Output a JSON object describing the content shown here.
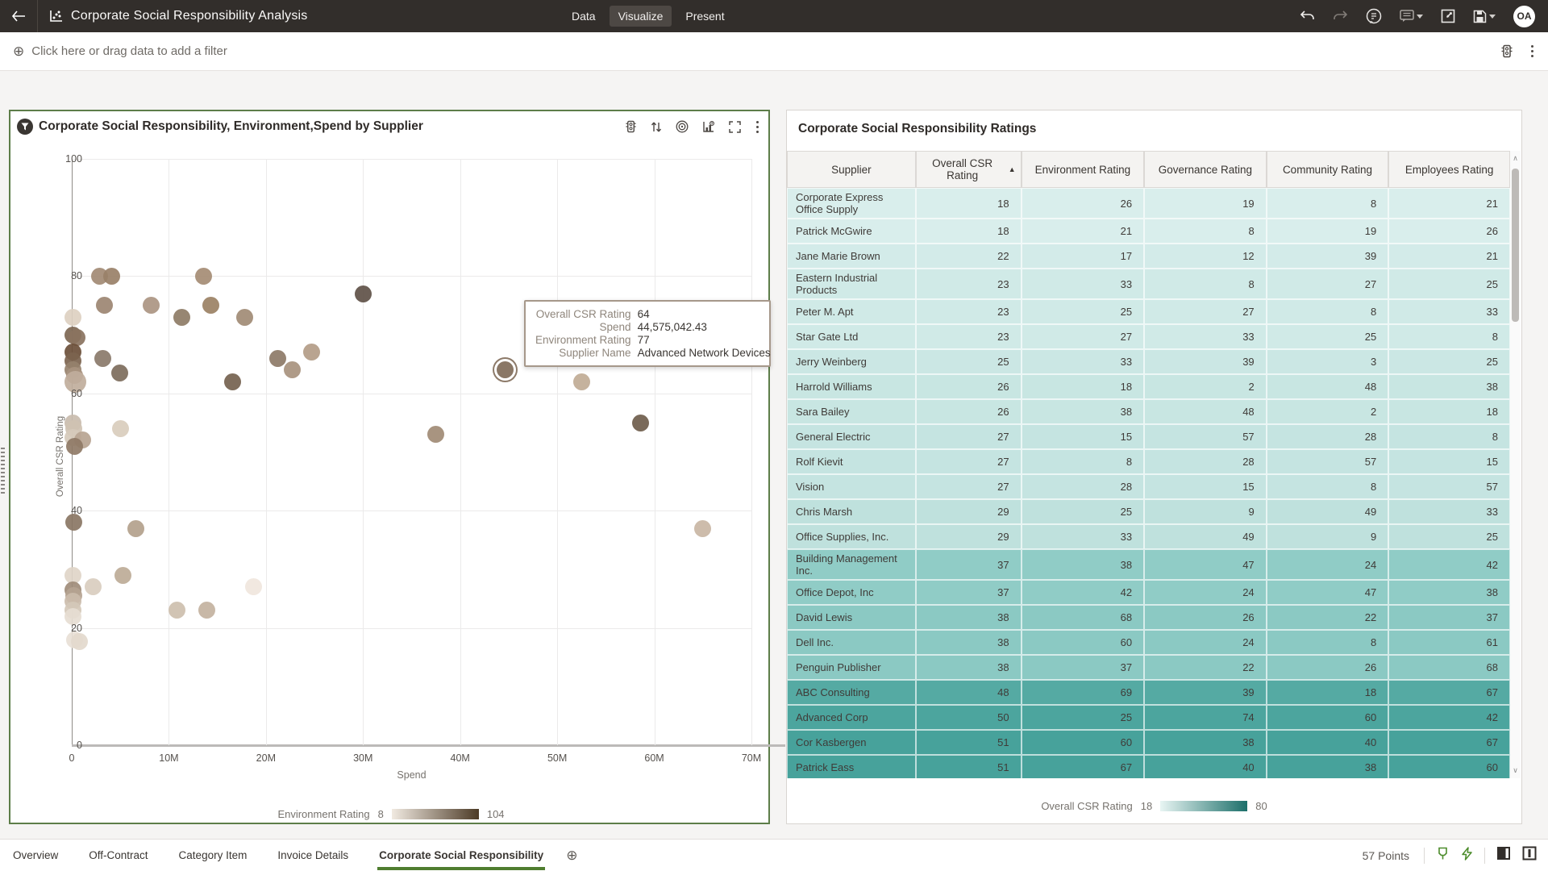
{
  "header": {
    "title": "Corporate Social Responsibility Analysis",
    "tabs": [
      {
        "label": "Data",
        "active": false
      },
      {
        "label": "Visualize",
        "active": true
      },
      {
        "label": "Present",
        "active": false
      }
    ],
    "avatar": "OA"
  },
  "filter_bar": {
    "prompt": "Click here or drag data to add a filter"
  },
  "chart_card": {
    "title": "Corporate Social Responsibility, Environment,Spend by Supplier",
    "tooltip": {
      "fields": [
        {
          "label": "Overall CSR Rating",
          "value": "64"
        },
        {
          "label": "Spend",
          "value": "44,575,042.43"
        },
        {
          "label": "Environment Rating",
          "value": "77"
        },
        {
          "label": "Supplier Name",
          "value": "Advanced Network Devices"
        }
      ]
    },
    "legend": {
      "label": "Environment Rating",
      "min": "8",
      "max": "104",
      "gradient_from": "#f1eae1",
      "gradient_to": "#4c3a26"
    }
  },
  "chart_data": {
    "type": "scatter",
    "title": "Corporate Social Responsibility, Environment,Spend by Supplier",
    "xlabel": "Spend",
    "ylabel": "Overall CSR Rating",
    "xlim": [
      0,
      70000000
    ],
    "ylim": [
      0,
      100
    ],
    "x_ticks": [
      "0",
      "10M",
      "20M",
      "30M",
      "40M",
      "50M",
      "60M",
      "70M"
    ],
    "y_ticks": [
      "0",
      "20",
      "40",
      "60",
      "80",
      "100"
    ],
    "color_by": "Environment Rating",
    "color_range": [
      8,
      104
    ],
    "highlighted_point": {
      "supplier": "Advanced Network Devices",
      "spend": 44575042.43,
      "overall_csr_rating": 64,
      "environment_rating": 77,
      "x_m": 44.6,
      "y": 64,
      "c": "#8a7766"
    },
    "points": [
      [
        2.9,
        80,
        "#a28a74"
      ],
      [
        4.1,
        80,
        "#998068"
      ],
      [
        13.6,
        80,
        "#a58c74"
      ],
      [
        3.4,
        75,
        "#9c8672"
      ],
      [
        8.2,
        75,
        "#ab9582"
      ],
      [
        14.3,
        75,
        "#9b8164"
      ],
      [
        11.3,
        73,
        "#8e7c66"
      ],
      [
        17.8,
        73,
        "#a18b75"
      ],
      [
        30,
        77,
        "#5f5148"
      ],
      [
        0.1,
        73,
        "#ddd0c1"
      ],
      [
        0.1,
        70,
        "#7d6753"
      ],
      [
        0.5,
        69.5,
        "#8a7360"
      ],
      [
        0.1,
        67,
        "#6b4f39"
      ],
      [
        0.1,
        65.5,
        "#7c644f"
      ],
      [
        0.1,
        64,
        "#96816d"
      ],
      [
        0.3,
        63,
        "#a8937f"
      ],
      [
        0.4,
        62,
        "#c0ae9c",
        27
      ],
      [
        3.2,
        66,
        "#8a7a6a"
      ],
      [
        4.9,
        63.5,
        "#7d6c5c"
      ],
      [
        16.6,
        62,
        "#75624f"
      ],
      [
        21.2,
        66,
        "#8d7967"
      ],
      [
        22.7,
        64,
        "#a8937e"
      ],
      [
        24.7,
        67,
        "#b39c87"
      ],
      [
        0.1,
        55,
        "#c9bcae"
      ],
      [
        0.2,
        54,
        "#cfc2b2"
      ],
      [
        0.1,
        52.5,
        "#d6cabb"
      ],
      [
        1.1,
        52,
        "#b7a491"
      ],
      [
        0.3,
        51,
        "#8f7a66"
      ],
      [
        5,
        54,
        "#d9cdbd"
      ],
      [
        0.2,
        38,
        "#8a7664"
      ],
      [
        6.6,
        37,
        "#b3a18c"
      ],
      [
        0.1,
        29,
        "#e0d5c8"
      ],
      [
        5.3,
        29,
        "#bdab97"
      ],
      [
        2.2,
        27,
        "#d9cdbf"
      ],
      [
        18.7,
        27,
        "#f0e6dd"
      ],
      [
        0.1,
        26.5,
        "#a08c79"
      ],
      [
        0.2,
        25.5,
        "#b5a391"
      ],
      [
        0.1,
        24.5,
        "#cbbcab"
      ],
      [
        0.1,
        23,
        "#d4c8b9"
      ],
      [
        0.1,
        22,
        "#e6ddd2"
      ],
      [
        0.3,
        18,
        "#e8e0d6"
      ],
      [
        0.8,
        17.7,
        "#e3d9cd"
      ],
      [
        10.8,
        23,
        "#cdbfae"
      ],
      [
        13.9,
        23,
        "#c3b29f"
      ],
      [
        37.5,
        53,
        "#a18b75"
      ],
      [
        52.5,
        62,
        "#c0ab95"
      ],
      [
        58.6,
        55,
        "#6f5d4c"
      ],
      [
        65,
        37,
        "#c9b6a4"
      ]
    ]
  },
  "table_card": {
    "title": "Corporate Social Responsibility Ratings",
    "columns": [
      "Supplier",
      "Overall CSR Rating",
      "Environment Rating",
      "Governance Rating",
      "Community Rating",
      "Employees Rating"
    ],
    "sort": {
      "column": "Overall CSR Rating",
      "direction": "ascending"
    },
    "rows": [
      {
        "supplier": "Corporate Express Office Supply",
        "values": [
          18,
          26,
          19,
          8,
          21
        ],
        "bg": "#d9eeec"
      },
      {
        "supplier": "Patrick McGwire",
        "values": [
          18,
          21,
          8,
          19,
          26
        ],
        "bg": "#d9eeec"
      },
      {
        "supplier": "Jane Marie Brown",
        "values": [
          22,
          17,
          12,
          39,
          21
        ],
        "bg": "#d3ebe9"
      },
      {
        "supplier": "Eastern Industrial Products",
        "values": [
          23,
          33,
          8,
          27,
          25
        ],
        "bg": "#d0eae7"
      },
      {
        "supplier": "Peter M. Apt",
        "values": [
          23,
          25,
          27,
          8,
          33
        ],
        "bg": "#d0eae7"
      },
      {
        "supplier": "Star Gate Ltd",
        "values": [
          23,
          27,
          33,
          25,
          8
        ],
        "bg": "#d0eae7"
      },
      {
        "supplier": "Jerry Weinberg",
        "values": [
          25,
          33,
          39,
          3,
          25
        ],
        "bg": "#cbe7e4"
      },
      {
        "supplier": "Harrold Williams",
        "values": [
          26,
          18,
          2,
          48,
          38
        ],
        "bg": "#c8e6e2"
      },
      {
        "supplier": "Sara Bailey",
        "values": [
          26,
          38,
          48,
          2,
          18
        ],
        "bg": "#c8e6e2"
      },
      {
        "supplier": "General Electric",
        "values": [
          27,
          15,
          57,
          28,
          8
        ],
        "bg": "#c5e4e1"
      },
      {
        "supplier": "Rolf Kievit",
        "values": [
          27,
          8,
          28,
          57,
          15
        ],
        "bg": "#c5e4e1"
      },
      {
        "supplier": "Vision",
        "values": [
          27,
          28,
          15,
          8,
          57
        ],
        "bg": "#c5e4e1"
      },
      {
        "supplier": "Chris Marsh",
        "values": [
          29,
          25,
          9,
          49,
          33
        ],
        "bg": "#bfe1dd"
      },
      {
        "supplier": "Office Supplies, Inc.",
        "values": [
          29,
          33,
          49,
          9,
          25
        ],
        "bg": "#bfe1dd"
      },
      {
        "supplier": "Building Management Inc.",
        "values": [
          37,
          38,
          47,
          24,
          42
        ],
        "bg": "#90ccc6"
      },
      {
        "supplier": "Office Depot, Inc",
        "values": [
          37,
          42,
          24,
          47,
          38
        ],
        "bg": "#90ccc6"
      },
      {
        "supplier": "David Lewis",
        "values": [
          38,
          68,
          26,
          22,
          37
        ],
        "bg": "#8bc9c3"
      },
      {
        "supplier": "Dell Inc.",
        "values": [
          38,
          60,
          24,
          8,
          61
        ],
        "bg": "#8bc9c3"
      },
      {
        "supplier": "Penguin Publisher",
        "values": [
          38,
          37,
          22,
          26,
          68
        ],
        "bg": "#8bc9c3"
      },
      {
        "supplier": "ABC Consulting",
        "values": [
          48,
          69,
          39,
          18,
          67
        ],
        "bg": "#55aaa3"
      },
      {
        "supplier": "Advanced Corp",
        "values": [
          50,
          25,
          74,
          60,
          42
        ],
        "bg": "#4ca59e"
      },
      {
        "supplier": "Cor Kasbergen",
        "values": [
          51,
          60,
          38,
          40,
          67
        ],
        "bg": "#47a29b"
      },
      {
        "supplier": "Patrick Eass",
        "values": [
          51,
          67,
          40,
          38,
          60
        ],
        "bg": "#47a29b"
      }
    ],
    "legend": {
      "label": "Overall CSR Rating",
      "min": "18",
      "max": "80",
      "gradient_from": "#e8f5f3",
      "gradient_to": "#1c6f6a"
    }
  },
  "bottombar": {
    "tabs": [
      {
        "label": "Overview",
        "active": false
      },
      {
        "label": "Off-Contract",
        "active": false
      },
      {
        "label": "Category Item",
        "active": false
      },
      {
        "label": "Invoice Details",
        "active": false
      },
      {
        "label": "Corporate Social Responsibility",
        "active": true
      }
    ],
    "status": "57 Points"
  }
}
